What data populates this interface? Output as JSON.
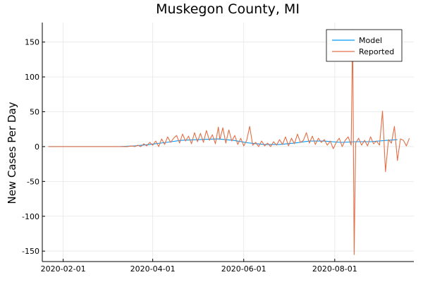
{
  "chart_data": {
    "type": "line",
    "title": "Muskegon County, MI",
    "xlabel": "",
    "ylabel": "New Cases Per Day",
    "x_range": [
      "2020-01-18",
      "2020-09-23"
    ],
    "ylim": [
      -165,
      178
    ],
    "x_ticks": [
      "2020-02-01",
      "2020-04-01",
      "2020-06-01",
      "2020-08-01"
    ],
    "y_ticks": [
      -150,
      -100,
      -50,
      0,
      50,
      100,
      150
    ],
    "grid": true,
    "legend_position": "top-right",
    "series": [
      {
        "name": "Model",
        "color": "#009AFA",
        "points": [
          [
            "2020-01-22",
            0
          ],
          [
            "2020-03-10",
            0
          ],
          [
            "2020-03-20",
            1
          ],
          [
            "2020-03-30",
            3
          ],
          [
            "2020-04-10",
            6
          ],
          [
            "2020-04-20",
            9
          ],
          [
            "2020-05-01",
            10
          ],
          [
            "2020-05-15",
            11
          ],
          [
            "2020-05-25",
            9
          ],
          [
            "2020-06-05",
            5
          ],
          [
            "2020-06-15",
            3
          ],
          [
            "2020-06-25",
            3
          ],
          [
            "2020-07-05",
            5
          ],
          [
            "2020-07-15",
            8
          ],
          [
            "2020-07-25",
            8
          ],
          [
            "2020-08-05",
            6
          ],
          [
            "2020-08-15",
            7
          ],
          [
            "2020-08-25",
            7
          ],
          [
            "2020-09-05",
            9
          ],
          [
            "2020-09-12",
            10
          ]
        ]
      },
      {
        "name": "Reported",
        "color": "#E26F46",
        "points": [
          [
            "2020-01-22",
            0
          ],
          [
            "2020-03-15",
            0
          ],
          [
            "2020-03-18",
            1
          ],
          [
            "2020-03-20",
            0
          ],
          [
            "2020-03-22",
            2
          ],
          [
            "2020-03-24",
            0
          ],
          [
            "2020-03-26",
            4
          ],
          [
            "2020-03-28",
            1
          ],
          [
            "2020-03-30",
            6
          ],
          [
            "2020-04-01",
            2
          ],
          [
            "2020-04-03",
            8
          ],
          [
            "2020-04-05",
            0
          ],
          [
            "2020-04-07",
            11
          ],
          [
            "2020-04-09",
            3
          ],
          [
            "2020-04-11",
            14
          ],
          [
            "2020-04-13",
            6
          ],
          [
            "2020-04-15",
            12
          ],
          [
            "2020-04-17",
            16
          ],
          [
            "2020-04-19",
            5
          ],
          [
            "2020-04-21",
            18
          ],
          [
            "2020-04-23",
            8
          ],
          [
            "2020-04-25",
            15
          ],
          [
            "2020-04-27",
            4
          ],
          [
            "2020-04-29",
            20
          ],
          [
            "2020-05-01",
            7
          ],
          [
            "2020-05-03",
            19
          ],
          [
            "2020-05-05",
            6
          ],
          [
            "2020-05-07",
            23
          ],
          [
            "2020-05-09",
            9
          ],
          [
            "2020-05-11",
            17
          ],
          [
            "2020-05-13",
            4
          ],
          [
            "2020-05-15",
            28
          ],
          [
            "2020-05-16",
            10
          ],
          [
            "2020-05-18",
            27
          ],
          [
            "2020-05-20",
            5
          ],
          [
            "2020-05-22",
            24
          ],
          [
            "2020-05-24",
            8
          ],
          [
            "2020-05-26",
            16
          ],
          [
            "2020-05-28",
            3
          ],
          [
            "2020-05-30",
            12
          ],
          [
            "2020-06-01",
            1
          ],
          [
            "2020-06-03",
            9
          ],
          [
            "2020-06-05",
            29
          ],
          [
            "2020-06-07",
            2
          ],
          [
            "2020-06-09",
            6
          ],
          [
            "2020-06-11",
            0
          ],
          [
            "2020-06-13",
            8
          ],
          [
            "2020-06-15",
            1
          ],
          [
            "2020-06-17",
            5
          ],
          [
            "2020-06-19",
            0
          ],
          [
            "2020-06-21",
            7
          ],
          [
            "2020-06-23",
            2
          ],
          [
            "2020-06-25",
            10
          ],
          [
            "2020-06-27",
            3
          ],
          [
            "2020-06-29",
            14
          ],
          [
            "2020-07-01",
            1
          ],
          [
            "2020-07-03",
            12
          ],
          [
            "2020-07-05",
            4
          ],
          [
            "2020-07-07",
            18
          ],
          [
            "2020-07-09",
            6
          ],
          [
            "2020-07-11",
            9
          ],
          [
            "2020-07-13",
            20
          ],
          [
            "2020-07-15",
            5
          ],
          [
            "2020-07-17",
            15
          ],
          [
            "2020-07-19",
            3
          ],
          [
            "2020-07-21",
            12
          ],
          [
            "2020-07-23",
            6
          ],
          [
            "2020-07-25",
            10
          ],
          [
            "2020-07-27",
            2
          ],
          [
            "2020-07-29",
            8
          ],
          [
            "2020-07-31",
            -3
          ],
          [
            "2020-08-02",
            6
          ],
          [
            "2020-08-04",
            12
          ],
          [
            "2020-08-06",
            0
          ],
          [
            "2020-08-08",
            9
          ],
          [
            "2020-08-10",
            14
          ],
          [
            "2020-08-12",
            2
          ],
          [
            "2020-08-13",
            168
          ],
          [
            "2020-08-14",
            -155
          ],
          [
            "2020-08-15",
            5
          ],
          [
            "2020-08-17",
            12
          ],
          [
            "2020-08-19",
            2
          ],
          [
            "2020-08-21",
            9
          ],
          [
            "2020-08-23",
            1
          ],
          [
            "2020-08-25",
            14
          ],
          [
            "2020-08-27",
            4
          ],
          [
            "2020-08-29",
            8
          ],
          [
            "2020-08-31",
            2
          ],
          [
            "2020-09-02",
            51
          ],
          [
            "2020-09-04",
            -36
          ],
          [
            "2020-09-06",
            10
          ],
          [
            "2020-09-08",
            5
          ],
          [
            "2020-09-10",
            29
          ],
          [
            "2020-09-12",
            -20
          ],
          [
            "2020-09-14",
            11
          ],
          [
            "2020-09-16",
            9
          ],
          [
            "2020-09-18",
            1
          ],
          [
            "2020-09-20",
            12
          ]
        ]
      }
    ]
  }
}
